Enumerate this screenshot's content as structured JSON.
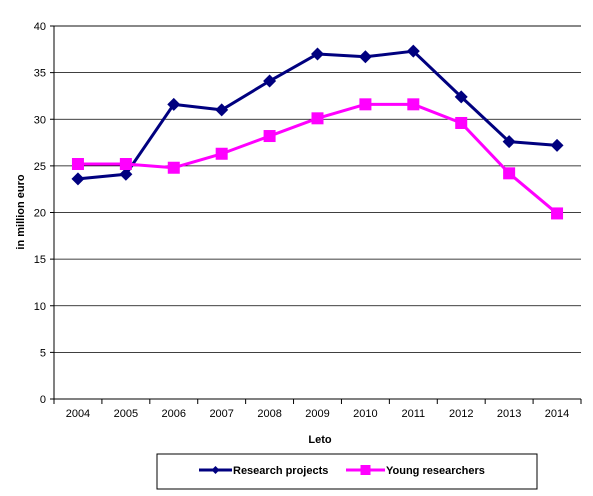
{
  "chart_data": {
    "type": "line",
    "title": "",
    "xlabel": "Leto",
    "ylabel": "in million euro",
    "categories": [
      "2004",
      "2005",
      "2006",
      "2007",
      "2008",
      "2009",
      "2010",
      "2011",
      "2012",
      "2013",
      "2014"
    ],
    "ylim": [
      0,
      40
    ],
    "yticks": [
      0,
      5,
      10,
      15,
      20,
      25,
      30,
      35,
      40
    ],
    "grid": "horizontal",
    "legend_position": "bottom",
    "series": [
      {
        "name": "Research projects",
        "color": "#00007f",
        "marker": "diamond",
        "values": [
          23.6,
          24.1,
          31.6,
          31.0,
          34.1,
          37.0,
          36.7,
          37.3,
          32.4,
          27.6,
          27.2
        ]
      },
      {
        "name": "Young researchers",
        "color": "#ff00ff",
        "marker": "square",
        "values": [
          25.2,
          25.2,
          24.8,
          26.3,
          28.2,
          30.1,
          31.6,
          31.6,
          29.6,
          24.2,
          19.9
        ]
      }
    ]
  }
}
